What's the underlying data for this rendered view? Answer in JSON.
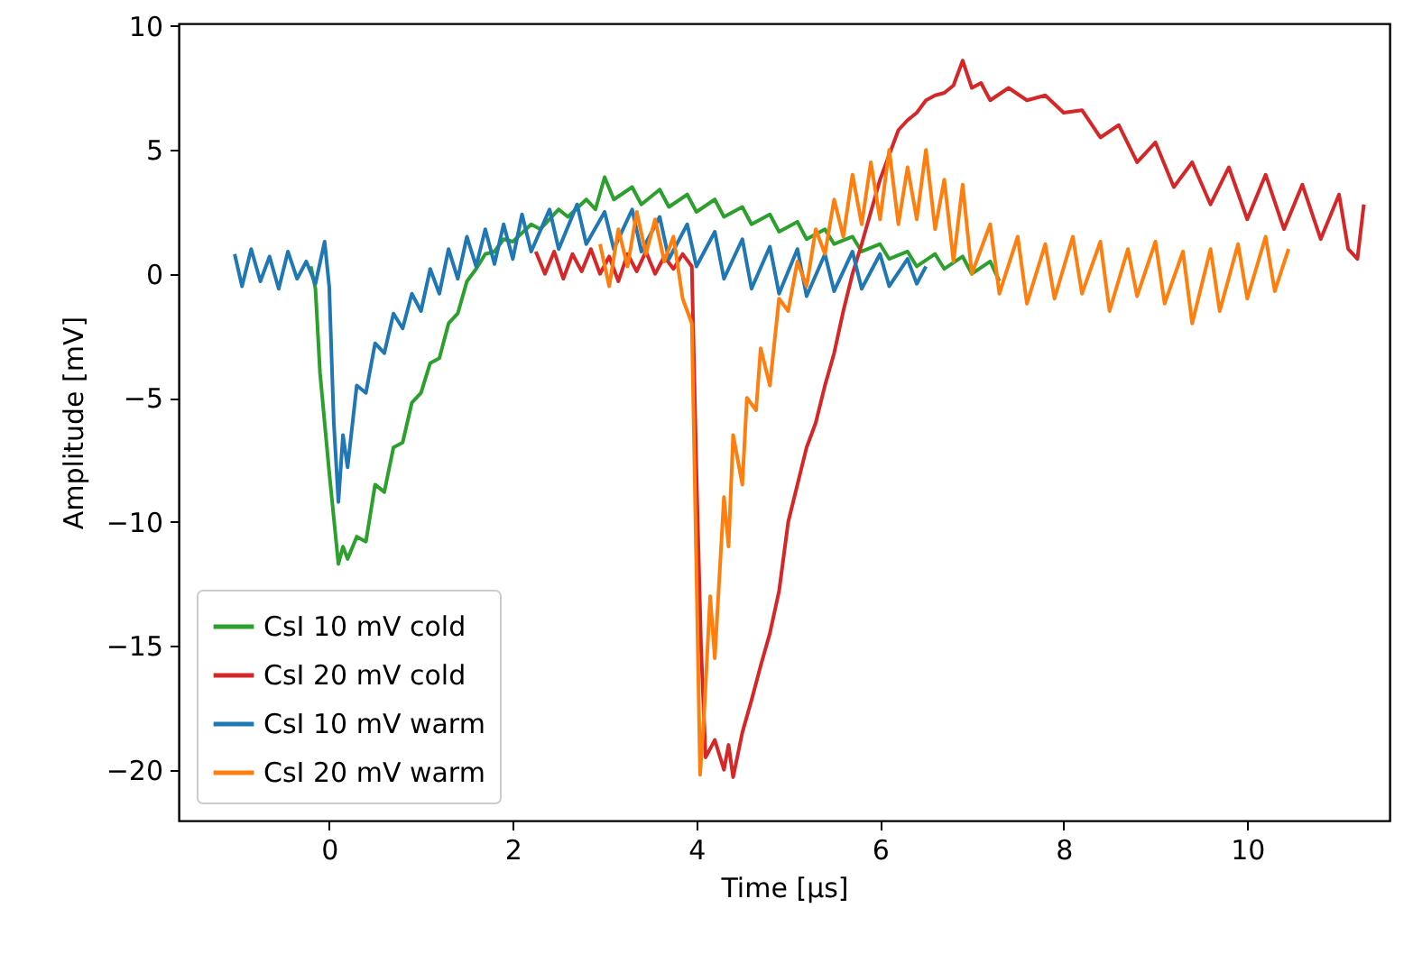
{
  "chart_data": {
    "type": "line",
    "xlabel": "Time [μs]",
    "ylabel": "Amplitude [mV]",
    "xlim": [
      -1.64,
      11.55
    ],
    "ylim": [
      -22.05,
      10.1
    ],
    "xticks": [
      0,
      2,
      4,
      6,
      8,
      10
    ],
    "yticks": [
      -20,
      -15,
      -10,
      -5,
      0,
      5,
      10
    ],
    "grid": false,
    "legend": "bottom left",
    "series": [
      {
        "name": "CsI 10 mV cold",
        "color": "#2ca02c",
        "x": [
          -0.2,
          -0.15,
          -0.1,
          0.0,
          0.1,
          0.15,
          0.2,
          0.3,
          0.4,
          0.5,
          0.6,
          0.7,
          0.8,
          0.9,
          1.0,
          1.1,
          1.2,
          1.3,
          1.4,
          1.5,
          1.6,
          1.7,
          1.8,
          1.9,
          2.0,
          2.2,
          2.3,
          2.5,
          2.6,
          2.8,
          2.9,
          3.0,
          3.1,
          3.3,
          3.4,
          3.6,
          3.7,
          3.9,
          4.0,
          4.2,
          4.3,
          4.5,
          4.6,
          4.8,
          4.9,
          5.1,
          5.2,
          5.4,
          5.5,
          5.7,
          5.8,
          6.0,
          6.1,
          6.3,
          6.4,
          6.6,
          6.7,
          6.9,
          7.0,
          7.2,
          7.3
        ],
        "values": [
          0.3,
          -0.6,
          -4,
          -8,
          -11.7,
          -11.0,
          -11.5,
          -10.6,
          -10.8,
          -8.5,
          -8.8,
          -7,
          -6.8,
          -5.2,
          -4.8,
          -3.6,
          -3.4,
          -2.0,
          -1.6,
          -0.3,
          0.2,
          0.8,
          0.9,
          1.4,
          1.3,
          2.0,
          1.8,
          2.6,
          2.3,
          3.0,
          2.6,
          3.9,
          3.0,
          3.5,
          2.8,
          3.4,
          2.7,
          3.2,
          2.5,
          3.0,
          2.3,
          2.7,
          2.0,
          2.4,
          1.7,
          2.1,
          1.4,
          1.8,
          1.2,
          1.5,
          0.9,
          1.2,
          0.6,
          0.9,
          0.3,
          0.8,
          0.2,
          0.7,
          0.0,
          0.5,
          -0.3
        ]
      },
      {
        "name": "CsI 20 mV cold",
        "color": "#d62728",
        "x": [
          2.25,
          2.35,
          2.45,
          2.55,
          2.65,
          2.75,
          2.85,
          2.95,
          3.05,
          3.15,
          3.25,
          3.35,
          3.45,
          3.55,
          3.65,
          3.75,
          3.85,
          3.95,
          4.0,
          4.05,
          4.1,
          4.2,
          4.3,
          4.35,
          4.4,
          4.5,
          4.6,
          4.7,
          4.8,
          4.9,
          5.0,
          5.1,
          5.2,
          5.3,
          5.4,
          5.5,
          5.6,
          5.7,
          5.8,
          5.9,
          6.0,
          6.1,
          6.2,
          6.3,
          6.4,
          6.5,
          6.6,
          6.7,
          6.8,
          6.9,
          7.0,
          7.1,
          7.2,
          7.4,
          7.6,
          7.8,
          8.0,
          8.2,
          8.4,
          8.6,
          8.8,
          9.0,
          9.2,
          9.4,
          9.6,
          9.8,
          10.0,
          10.2,
          10.4,
          10.6,
          10.8,
          11.0,
          11.1,
          11.2,
          11.27
        ],
        "values": [
          0.9,
          0.0,
          0.9,
          -0.2,
          0.8,
          0.1,
          1.0,
          0.0,
          0.7,
          -0.3,
          0.8,
          0.1,
          0.9,
          0.0,
          0.7,
          0.2,
          0.8,
          0.3,
          -8,
          -15,
          -19.5,
          -18.8,
          -20.0,
          -19.0,
          -20.3,
          -18.5,
          -17.2,
          -15.8,
          -14.5,
          -12.8,
          -10.0,
          -8.5,
          -7.0,
          -6.0,
          -4.5,
          -3.2,
          -1.5,
          0.0,
          1.2,
          2.5,
          3.8,
          4.8,
          5.8,
          6.2,
          6.5,
          7.0,
          7.2,
          7.3,
          7.6,
          8.6,
          7.5,
          7.7,
          7.0,
          7.5,
          7.0,
          7.2,
          6.5,
          6.6,
          5.5,
          6.0,
          4.5,
          5.3,
          3.5,
          4.5,
          2.8,
          4.3,
          2.2,
          4.0,
          1.8,
          3.6,
          1.4,
          3.2,
          1.0,
          0.6,
          2.8
        ]
      },
      {
        "name": "CsI 10 mV warm",
        "color": "#1f77b4",
        "x": [
          -1.03,
          -0.95,
          -0.85,
          -0.75,
          -0.65,
          -0.55,
          -0.45,
          -0.35,
          -0.25,
          -0.15,
          -0.05,
          0.0,
          0.05,
          0.1,
          0.15,
          0.2,
          0.3,
          0.4,
          0.5,
          0.6,
          0.7,
          0.8,
          0.9,
          1.0,
          1.1,
          1.2,
          1.3,
          1.4,
          1.5,
          1.6,
          1.7,
          1.8,
          1.9,
          2.0,
          2.1,
          2.2,
          2.4,
          2.5,
          2.7,
          2.8,
          3.0,
          3.1,
          3.3,
          3.4,
          3.6,
          3.7,
          3.9,
          4.0,
          4.2,
          4.3,
          4.5,
          4.6,
          4.8,
          4.9,
          5.1,
          5.2,
          5.4,
          5.5,
          5.7,
          5.8,
          6.0,
          6.1,
          6.3,
          6.4,
          6.5
        ],
        "values": [
          0.8,
          -0.5,
          1.0,
          -0.3,
          0.7,
          -0.6,
          0.9,
          -0.2,
          0.5,
          -0.4,
          1.3,
          -0.5,
          -6,
          -9.2,
          -6.5,
          -7.8,
          -4.5,
          -4.8,
          -2.8,
          -3.2,
          -1.6,
          -2.2,
          -0.8,
          -1.5,
          0.2,
          -0.8,
          1.0,
          -0.2,
          1.5,
          0.3,
          1.8,
          0.4,
          2.0,
          0.6,
          2.4,
          0.9,
          2.6,
          1.0,
          2.8,
          1.2,
          2.5,
          1.0,
          2.6,
          0.9,
          2.3,
          0.6,
          2.0,
          0.3,
          1.7,
          -0.2,
          1.4,
          -0.6,
          1.1,
          -0.8,
          1.0,
          -0.9,
          0.8,
          -0.7,
          0.9,
          -0.6,
          0.8,
          -0.5,
          0.6,
          -0.4,
          0.3
        ]
      },
      {
        "name": "CsI 20 mV warm",
        "color": "#ff7f0e",
        "x": [
          2.95,
          3.05,
          3.15,
          3.25,
          3.35,
          3.45,
          3.55,
          3.65,
          3.75,
          3.85,
          3.95,
          4.0,
          4.04,
          4.08,
          4.15,
          4.2,
          4.3,
          4.35,
          4.4,
          4.5,
          4.55,
          4.65,
          4.7,
          4.8,
          4.9,
          5.0,
          5.1,
          5.2,
          5.3,
          5.4,
          5.5,
          5.6,
          5.7,
          5.8,
          5.9,
          6.0,
          6.1,
          6.2,
          6.3,
          6.4,
          6.5,
          6.6,
          6.7,
          6.8,
          6.9,
          7.0,
          7.2,
          7.3,
          7.5,
          7.6,
          7.8,
          7.9,
          8.1,
          8.2,
          8.4,
          8.5,
          8.7,
          8.8,
          9.0,
          9.1,
          9.3,
          9.4,
          9.6,
          9.7,
          9.9,
          10.0,
          10.2,
          10.3,
          10.45
        ],
        "values": [
          1.2,
          -0.5,
          1.8,
          0.3,
          2.5,
          0.8,
          2.2,
          0.5,
          1.5,
          -1.0,
          -2,
          -12,
          -20.2,
          -18,
          -13,
          -15.5,
          -9,
          -11,
          -6.5,
          -8.5,
          -5,
          -5.5,
          -3,
          -4.5,
          -1,
          -1.5,
          0.5,
          -0.5,
          1.8,
          0.8,
          3.0,
          1.5,
          4.0,
          2.0,
          4.5,
          2.2,
          5.0,
          2.0,
          4.3,
          2.2,
          5.0,
          1.8,
          3.8,
          0.5,
          3.6,
          0.0,
          2.0,
          -0.8,
          1.5,
          -1.2,
          1.2,
          -1.0,
          1.5,
          -0.8,
          1.3,
          -1.5,
          1.0,
          -0.9,
          1.3,
          -1.2,
          0.9,
          -2.0,
          1.0,
          -1.5,
          1.2,
          -1.0,
          1.5,
          -0.7,
          1.0
        ]
      }
    ]
  }
}
